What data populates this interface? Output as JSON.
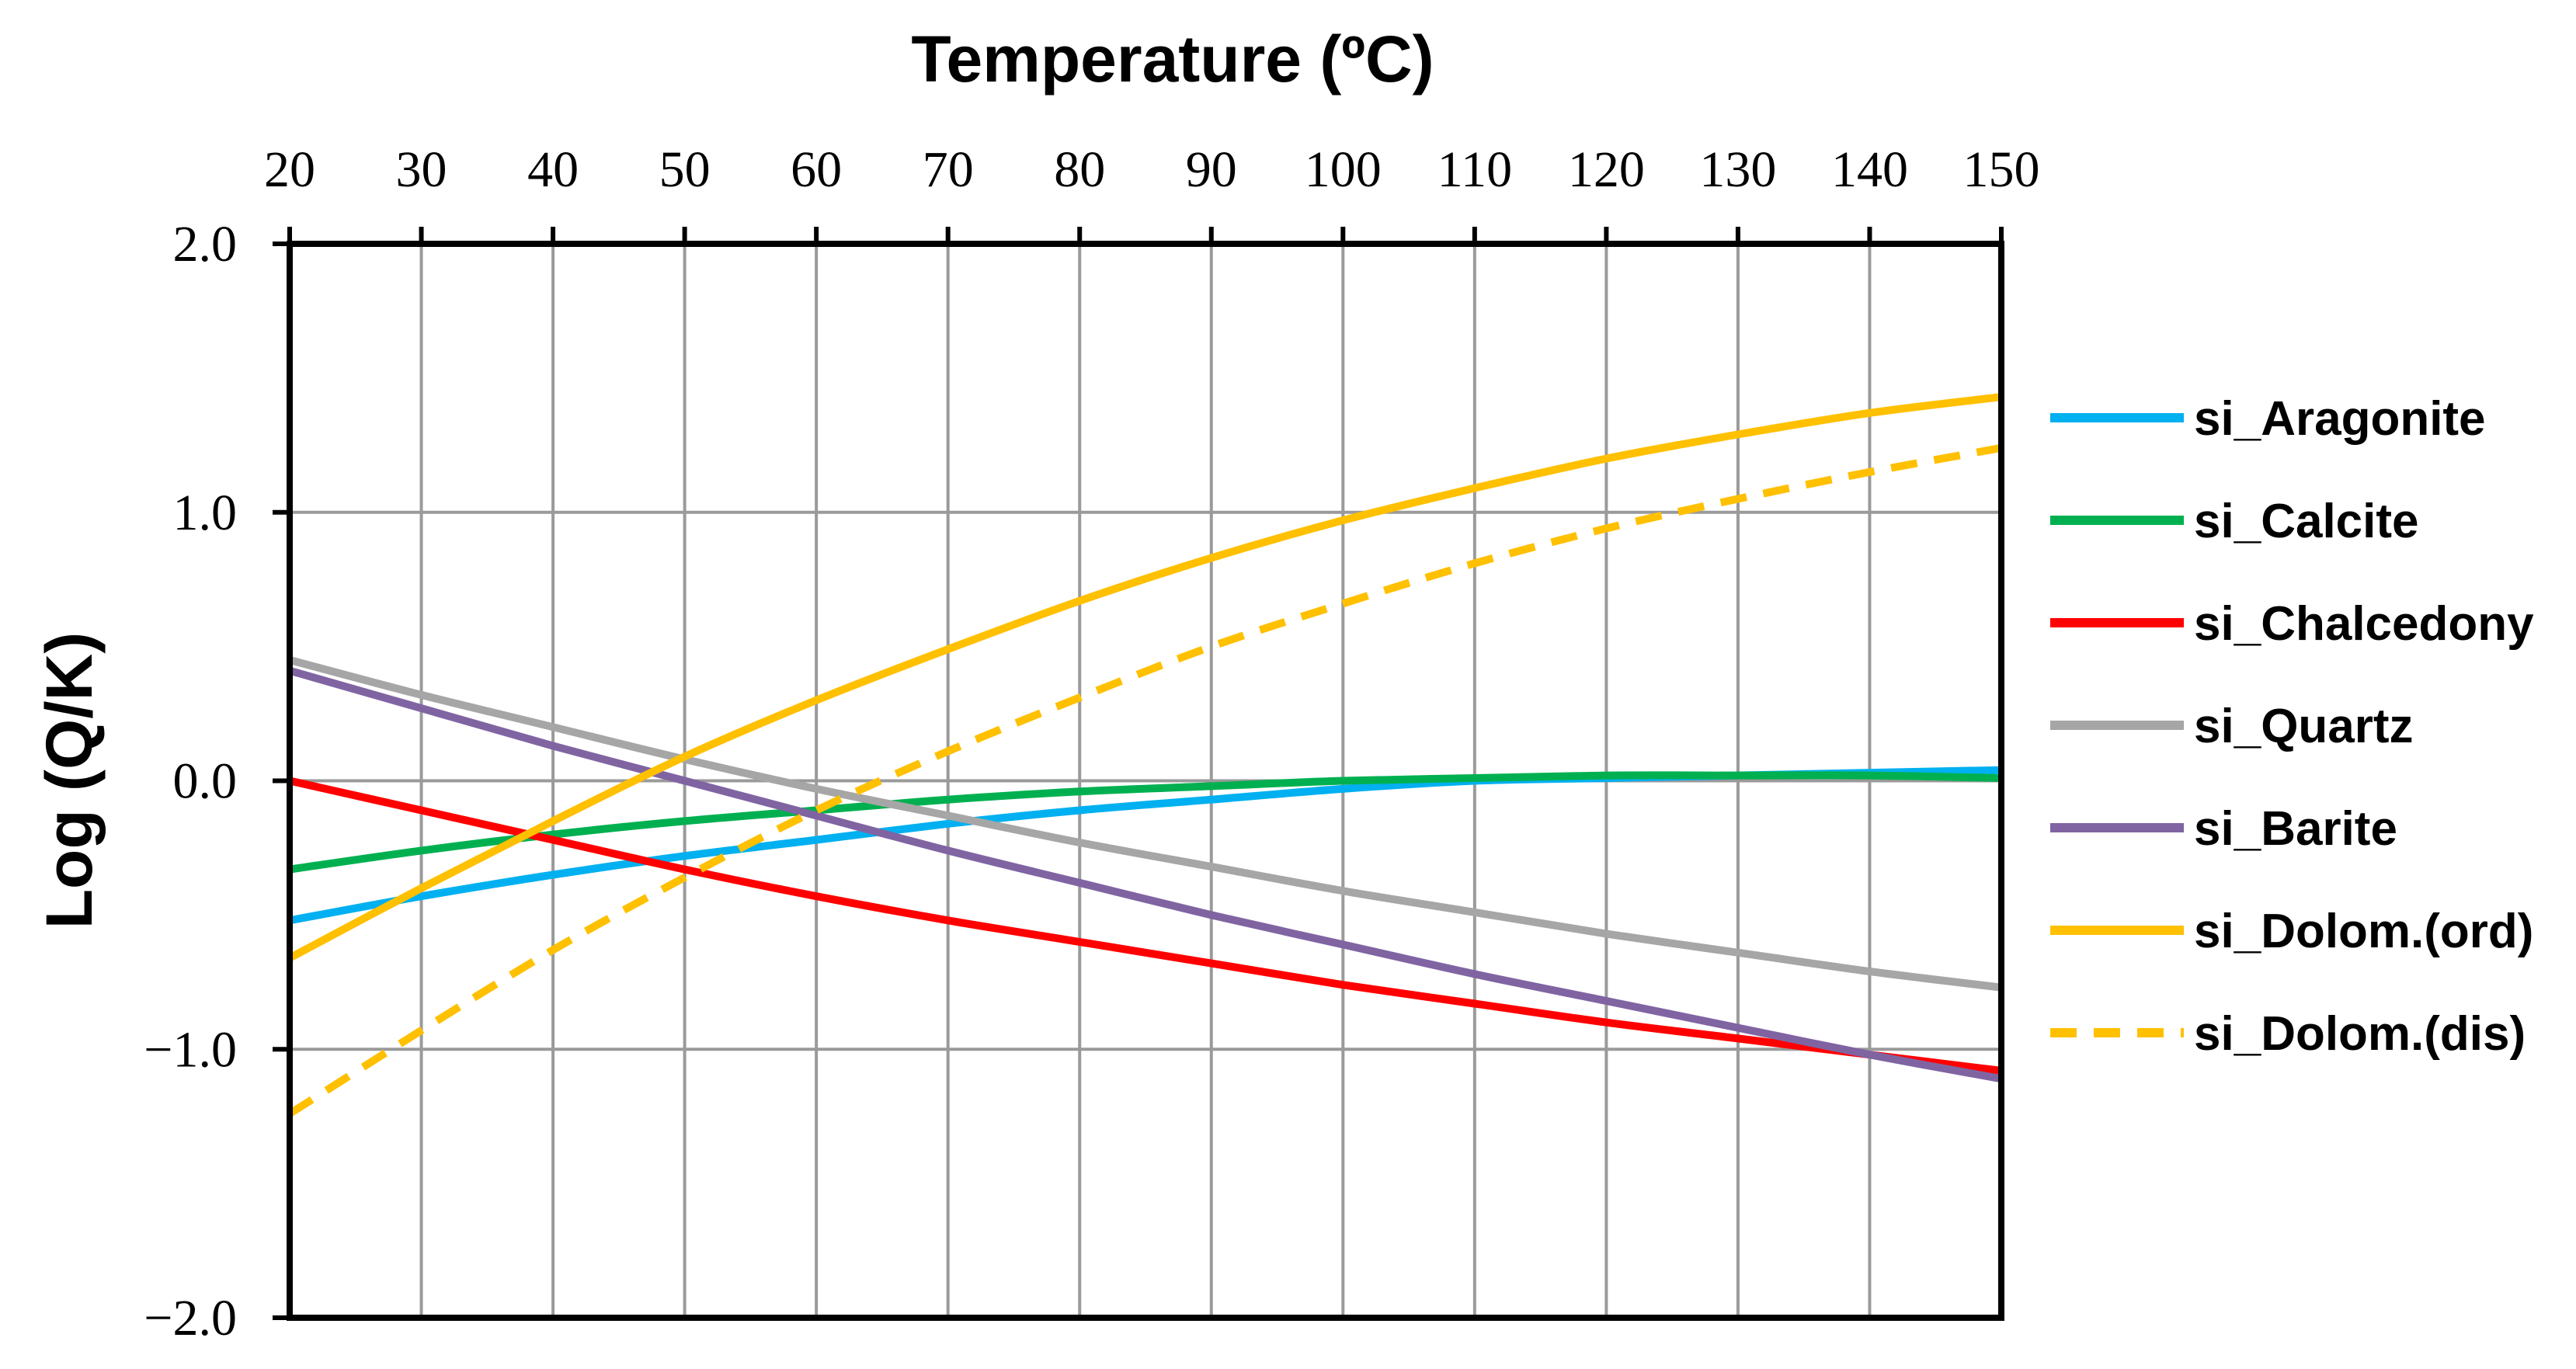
{
  "chart_data": {
    "type": "line",
    "title": "Temperature (ºC)",
    "xlabel": "Temperature (ºC)",
    "ylabel": "Log (Q/K)",
    "x_ticks": [
      "20",
      "30",
      "40",
      "50",
      "60",
      "70",
      "80",
      "90",
      "100",
      "110",
      "120",
      "130",
      "140",
      "150"
    ],
    "y_ticks": [
      {
        "value": 2,
        "label": "2.0"
      },
      {
        "value": 1,
        "label": "1.0"
      },
      {
        "value": 0,
        "label": "0.0"
      },
      {
        "value": -1,
        "label": "−1.0"
      },
      {
        "value": -2,
        "label": "−2.0"
      }
    ],
    "xlim": [
      20,
      150
    ],
    "ylim": [
      -2,
      2
    ],
    "grid": true,
    "legend_position": "right",
    "x": [
      20,
      30,
      40,
      50,
      60,
      70,
      80,
      90,
      100,
      110,
      120,
      130,
      140,
      150
    ],
    "series": [
      {
        "name": "si_Aragonite",
        "color": "#00B0F0",
        "dashed": false,
        "values": [
          -0.52,
          -0.43,
          -0.35,
          -0.28,
          -0.22,
          -0.16,
          -0.11,
          -0.07,
          -0.03,
          0.0,
          0.01,
          0.02,
          0.03,
          0.04
        ]
      },
      {
        "name": "si_Calcite",
        "color": "#00B050",
        "dashed": false,
        "values": [
          -0.33,
          -0.26,
          -0.2,
          -0.15,
          -0.11,
          -0.07,
          -0.04,
          -0.02,
          0.0,
          0.01,
          0.02,
          0.02,
          0.02,
          0.01
        ]
      },
      {
        "name": "si_Chalcedony",
        "color": "#FF0000",
        "dashed": false,
        "values": [
          0.0,
          -0.11,
          -0.22,
          -0.33,
          -0.43,
          -0.52,
          -0.6,
          -0.68,
          -0.76,
          -0.83,
          -0.9,
          -0.96,
          -1.02,
          -1.08
        ]
      },
      {
        "name": "si_Quartz",
        "color": "#A6A6A6",
        "dashed": false,
        "values": [
          0.45,
          0.32,
          0.2,
          0.08,
          -0.03,
          -0.13,
          -0.23,
          -0.32,
          -0.41,
          -0.49,
          -0.57,
          -0.64,
          -0.71,
          -0.77
        ]
      },
      {
        "name": "si_Barite",
        "color": "#8064A2",
        "dashed": false,
        "values": [
          0.41,
          0.27,
          0.13,
          0.0,
          -0.13,
          -0.26,
          -0.38,
          -0.5,
          -0.61,
          -0.72,
          -0.82,
          -0.92,
          -1.02,
          -1.11
        ]
      },
      {
        "name": "si_Dolom.(ord)",
        "color": "#FFC000",
        "dashed": false,
        "values": [
          -0.66,
          -0.4,
          -0.15,
          0.09,
          0.3,
          0.49,
          0.67,
          0.83,
          0.97,
          1.09,
          1.2,
          1.29,
          1.37,
          1.43
        ]
      },
      {
        "name": "si_Dolom.(dis)",
        "color": "#FFC000",
        "dashed": true,
        "values": [
          -1.24,
          -0.93,
          -0.63,
          -0.36,
          -0.11,
          0.11,
          0.31,
          0.5,
          0.66,
          0.81,
          0.94,
          1.05,
          1.15,
          1.24
        ]
      }
    ]
  }
}
